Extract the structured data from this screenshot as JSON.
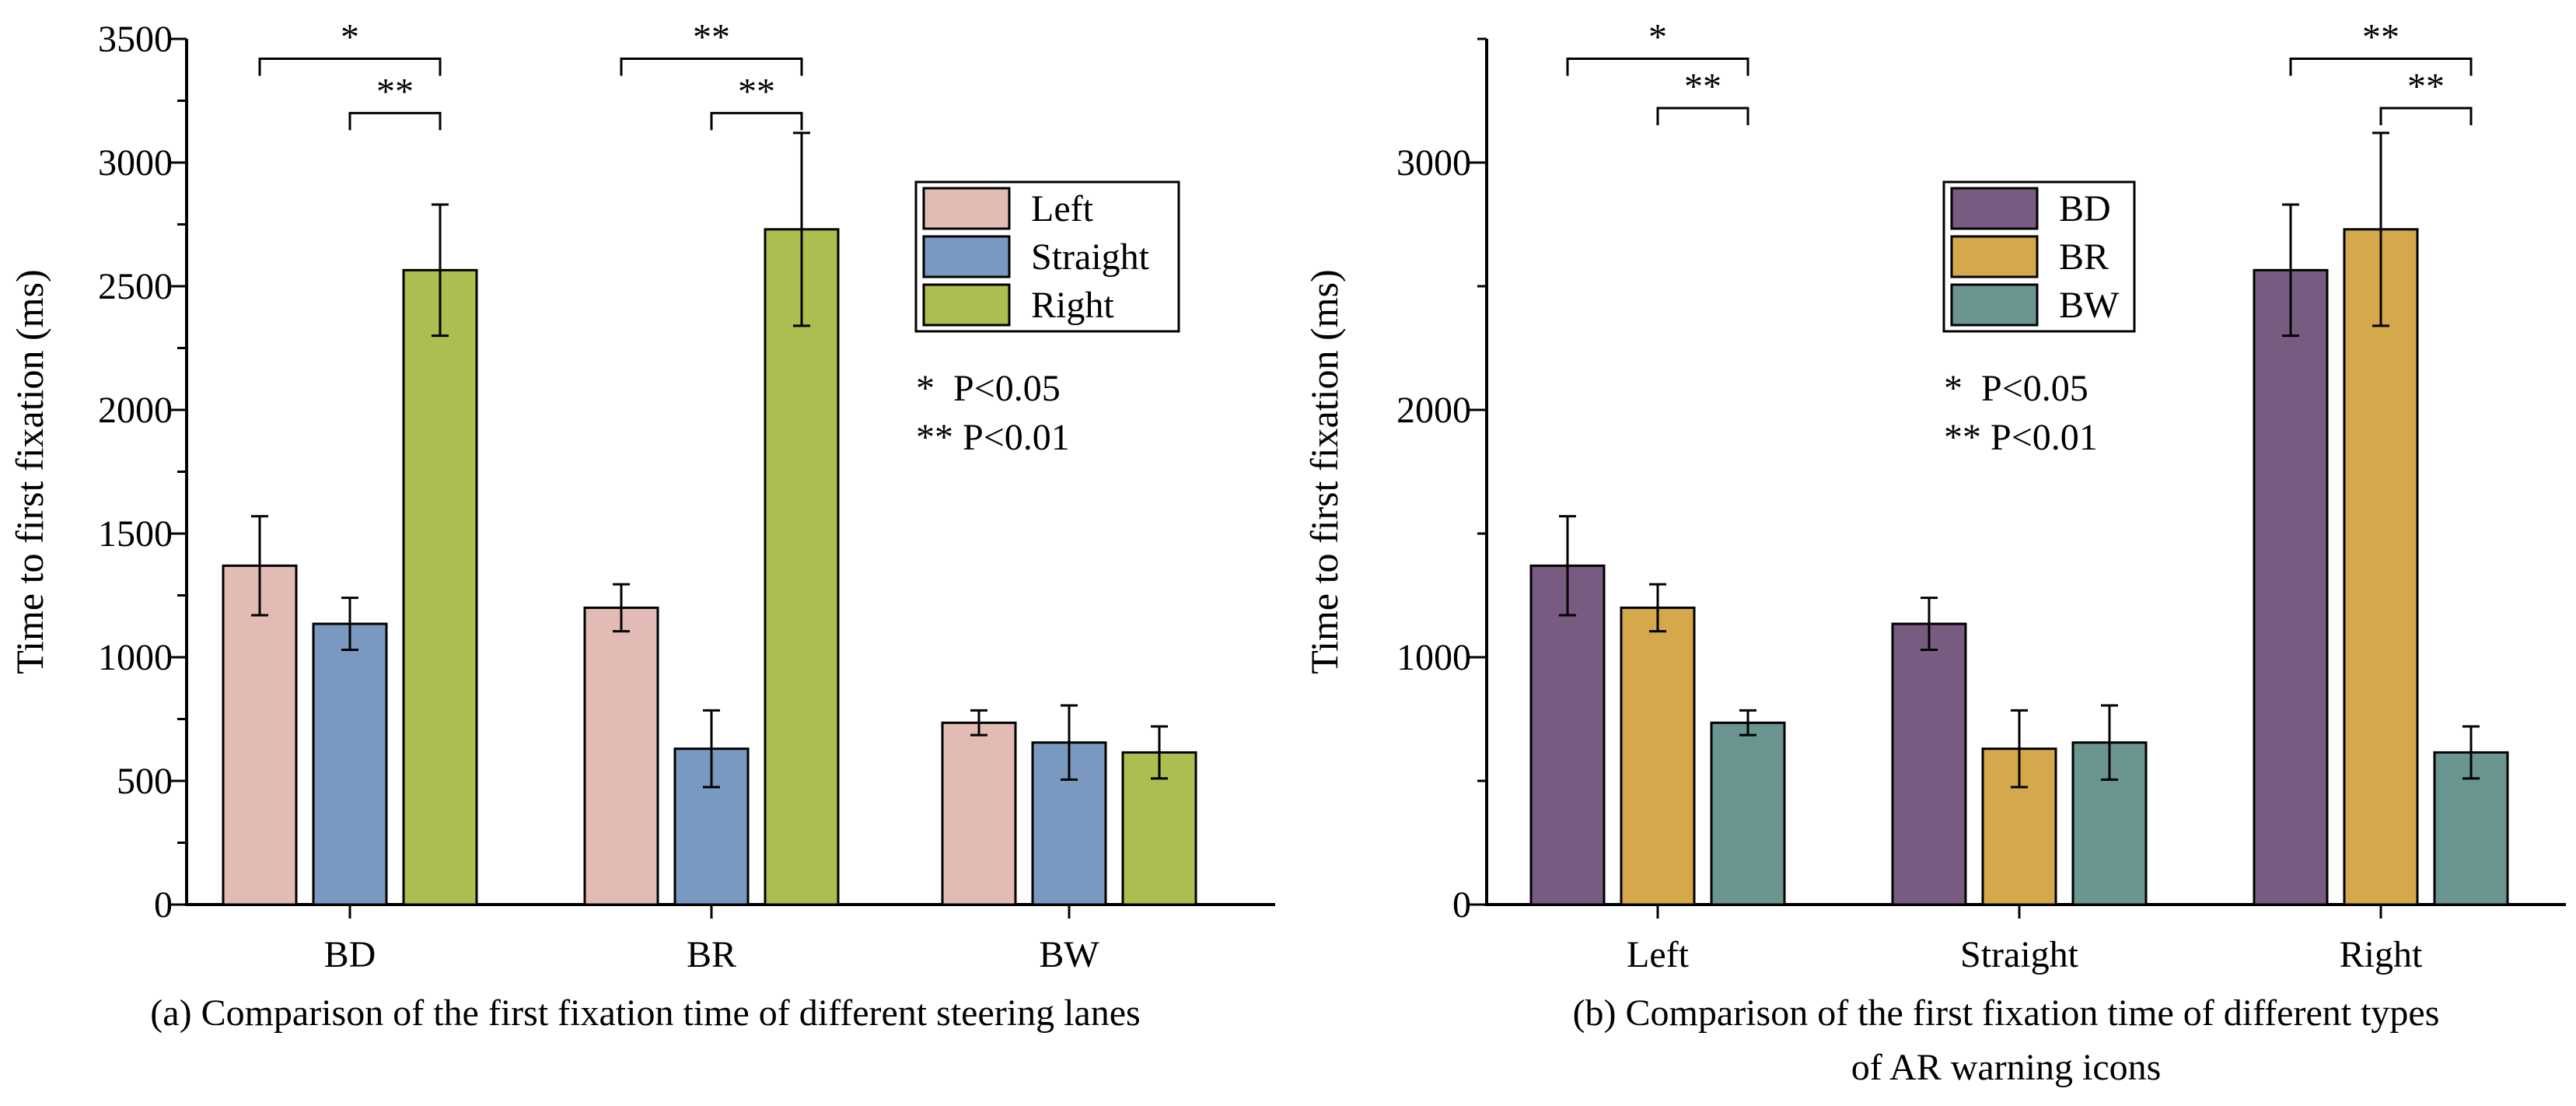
{
  "chart_data": [
    {
      "type": "bar",
      "caption": "(a) Comparison of the first fixation time of different steering lanes",
      "ylabel": "Time to first fixation (ms)",
      "xlabel": "",
      "categories": [
        "BD",
        "BR",
        "BW"
      ],
      "ylim": [
        0,
        3500
      ],
      "yticks": [
        "0",
        "500",
        "1000",
        "1500",
        "2000",
        "2500",
        "3000",
        "3500"
      ],
      "series": [
        {
          "name": "Left",
          "color": "#e2bcb4",
          "values": [
            1370,
            1200,
            735
          ],
          "errors": [
            200,
            95,
            50
          ]
        },
        {
          "name": "Straight",
          "color": "#7a99c0",
          "values": [
            1135,
            630,
            655
          ],
          "errors": [
            105,
            155,
            150
          ]
        },
        {
          "name": "Right",
          "color": "#adbd4f",
          "values": [
            2565,
            2730,
            615
          ],
          "errors": [
            265,
            390,
            105
          ]
        }
      ],
      "legend_position": "top-right",
      "significance_legend": [
        "*  P<0.05",
        "** P<0.01"
      ],
      "significance": [
        {
          "category": "BD",
          "from": "Left",
          "to": "Right",
          "label": "*",
          "level": 3420
        },
        {
          "category": "BD",
          "from": "Straight",
          "to": "Right",
          "label": "**",
          "level": 3200
        },
        {
          "category": "BR",
          "from": "Left",
          "to": "Right",
          "label": "**",
          "level": 3420
        },
        {
          "category": "BR",
          "from": "Straight",
          "to": "Right",
          "label": "**",
          "level": 3200
        }
      ]
    },
    {
      "type": "bar",
      "caption_lines": [
        "(b) Comparison of the first fixation time of different types",
        "of AR warning icons"
      ],
      "ylabel": "Time to first fixation (ms)",
      "xlabel": "",
      "categories": [
        "Left",
        "Straight",
        "Right"
      ],
      "ylim": [
        0,
        3500
      ],
      "yticks": [
        "0",
        "1000",
        "2000",
        "3000"
      ],
      "series": [
        {
          "name": "BD",
          "color": "#775b80",
          "values": [
            1370,
            1135,
            2565
          ],
          "errors": [
            200,
            105,
            265
          ]
        },
        {
          "name": "BR",
          "color": "#d4a84b",
          "values": [
            1200,
            630,
            2730
          ],
          "errors": [
            95,
            155,
            390
          ]
        },
        {
          "name": "BW",
          "color": "#6b9590",
          "values": [
            735,
            655,
            615
          ],
          "errors": [
            50,
            150,
            105
          ]
        }
      ],
      "legend_position": "top-center",
      "significance_legend": [
        "*  P<0.05",
        "** P<0.01"
      ],
      "significance": [
        {
          "category": "Left",
          "from": "BD",
          "to": "BW",
          "label": "*",
          "level": 3420
        },
        {
          "category": "Left",
          "from": "BR",
          "to": "BW",
          "label": "**",
          "level": 3220
        },
        {
          "category": "Right",
          "from": "BD",
          "to": "BW",
          "label": "**",
          "level": 3420
        },
        {
          "category": "Right",
          "from": "BR",
          "to": "BW",
          "label": "**",
          "level": 3220
        }
      ]
    }
  ]
}
